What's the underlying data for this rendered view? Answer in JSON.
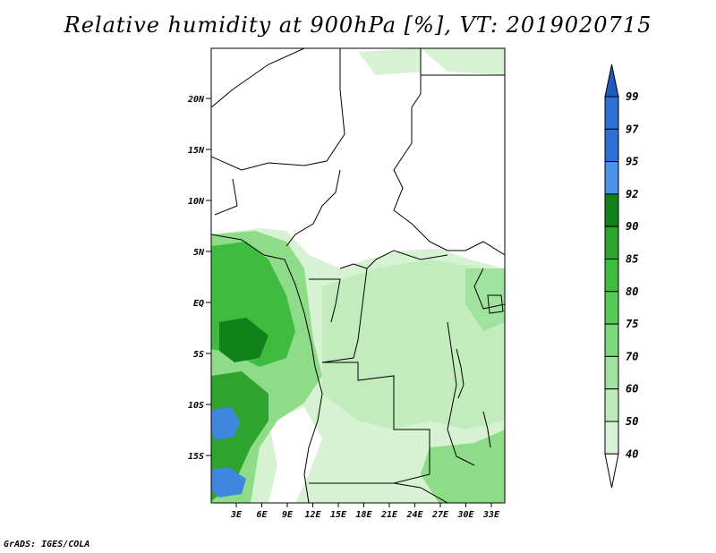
{
  "title": "Relative humidity at 900hPa [%], VT: 2019020715",
  "credit": "GrADS: IGES/COLA",
  "map": {
    "lat_labels": [
      "20N",
      "15N",
      "10N",
      "5N",
      "EQ",
      "5S",
      "10S",
      "15S"
    ],
    "lon_labels": [
      "3E",
      "6E",
      "9E",
      "12E",
      "15E",
      "18E",
      "21E",
      "24E",
      "27E",
      "30E",
      "33E"
    ]
  },
  "colorbar": {
    "levels": [
      "99",
      "97",
      "95",
      "92",
      "90",
      "85",
      "80",
      "75",
      "70",
      "60",
      "50",
      "40"
    ],
    "colors": [
      "#2f6fd6",
      "#2f6fd6",
      "#4a94e8",
      "#11821a",
      "#2ea32e",
      "#3fbb3f",
      "#55cc55",
      "#7bd97b",
      "#9fe39f",
      "#bdebbd",
      "#d7f3d7",
      "#eefbee"
    ],
    "top_color": "#1e5bbd",
    "bottom_color": "#ffffff"
  },
  "colors": {
    "land_dry": "#ffffff",
    "humid_light": "#d4f2d0",
    "humid_mid": "#8fdc88",
    "humid_dark": "#2fae2f",
    "saturated": "#3f86e0"
  }
}
